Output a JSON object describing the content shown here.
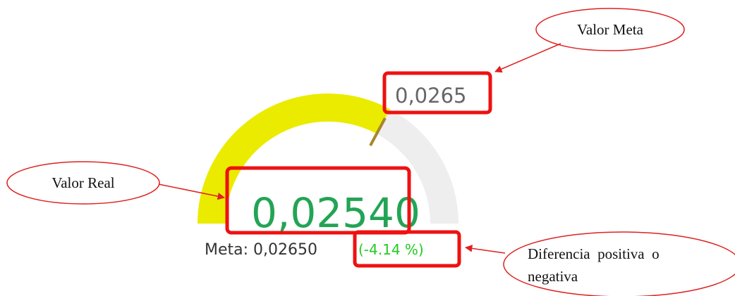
{
  "gauge": {
    "target_label": "0,0265",
    "value": "0,02540",
    "meta": "Meta: 0,02650",
    "difference": "(-4.14 %)"
  },
  "annotations": {
    "target": "Valor Meta",
    "value": "Valor Real",
    "difference": [
      "Diferencia  positiva  o",
      "negativa"
    ]
  }
}
